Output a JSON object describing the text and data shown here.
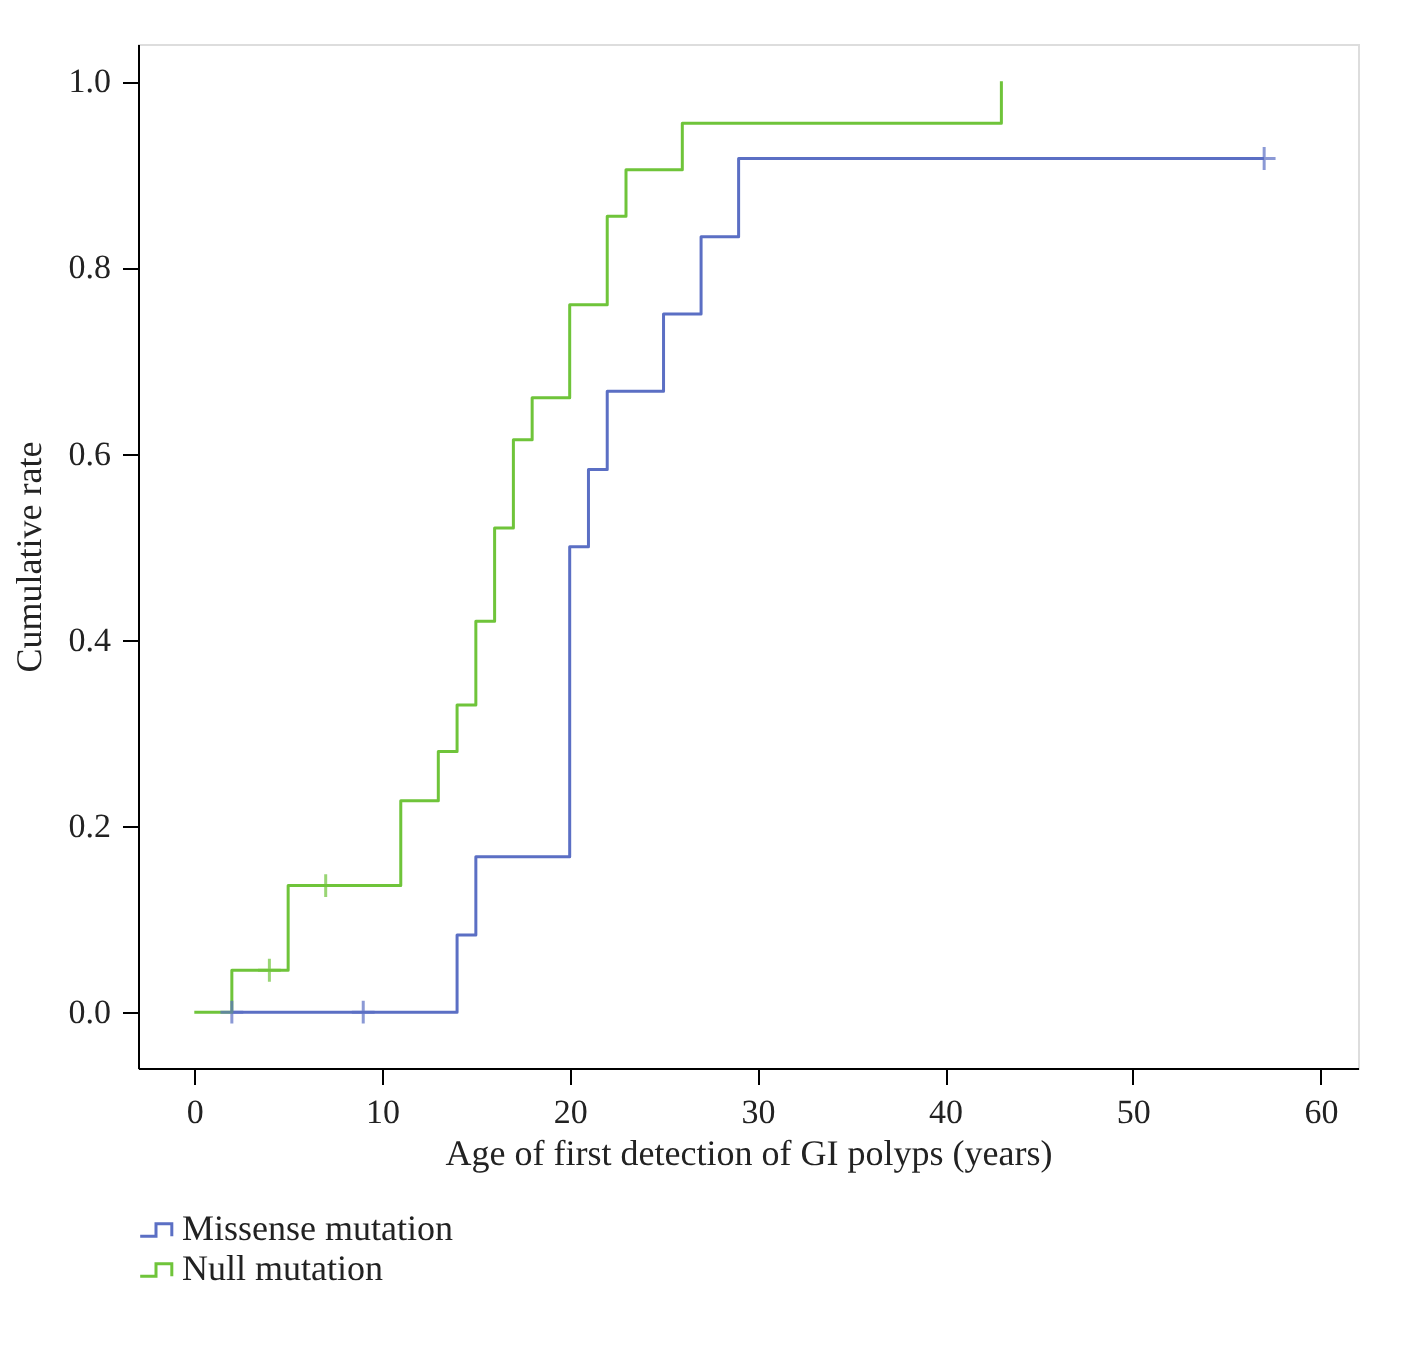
{
  "chart_data": {
    "type": "step",
    "xlabel": "Age of first detection of GI polyps (years)",
    "ylabel": "Cumulative rate",
    "xlim": [
      -3,
      62
    ],
    "xticks": [
      0,
      10,
      20,
      30,
      40,
      50,
      60
    ],
    "ylim": [
      -0.06,
      1.04
    ],
    "yticks": [
      {
        "value": 0,
        "label": "0.0"
      },
      {
        "value": 0.2,
        "label": "0.2"
      },
      {
        "value": 0.4,
        "label": "0.4"
      },
      {
        "value": 0.6,
        "label": "0.6"
      },
      {
        "value": 0.8,
        "label": "0.8"
      },
      {
        "value": 1,
        "label": "1.0"
      }
    ],
    "grid": false,
    "legend": "bottom left",
    "series": [
      {
        "name": "Missense mutation",
        "color": "#5b6fc4",
        "x": [
          2,
          14,
          15,
          20,
          21,
          22,
          25,
          27,
          29,
          57
        ],
        "values": [
          0,
          0.083,
          0.167,
          0.5,
          0.583,
          0.667,
          0.75,
          0.833,
          0.917,
          0.917
        ]
      },
      {
        "name": "Null mutation",
        "color": "#6fc43a",
        "x": [
          0,
          2,
          5,
          11,
          13,
          14,
          15,
          16,
          17,
          18,
          20,
          22,
          23,
          26,
          43
        ],
        "values": [
          0,
          0.045,
          0.136,
          0.227,
          0.28,
          0.33,
          0.42,
          0.52,
          0.615,
          0.66,
          0.76,
          0.855,
          0.905,
          0.955,
          1.0
        ]
      },
      {
        "type": "scatter",
        "marker": "cross",
        "color": "#5b6fc4",
        "x": [
          2,
          9,
          57
        ],
        "values": [
          0,
          0,
          0.917
        ]
      },
      {
        "type": "scatter",
        "marker": "cross",
        "color": "#6fc43a",
        "x": [
          4,
          7
        ],
        "values": [
          0.045,
          0.136
        ]
      }
    ]
  }
}
